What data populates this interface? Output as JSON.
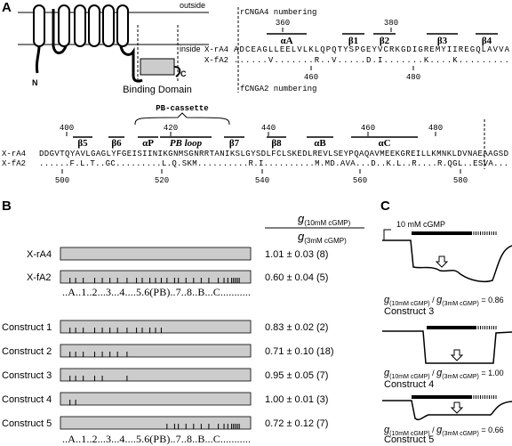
{
  "panel_labels": [
    "A",
    "B",
    "C"
  ],
  "topology": {
    "outside": "outside",
    "inside": "inside",
    "n_term": "N",
    "c_term": "C",
    "domain": "Binding Domain"
  },
  "alignment_top": {
    "numbering_top": "rCNGA4 numbering",
    "numbering_bottom": "fCNGA2 numbering",
    "top_numbers": [
      "360",
      "380"
    ],
    "bottom_numbers": [
      "460",
      "480"
    ],
    "structures": [
      "αA",
      "β1",
      "β2",
      "β3",
      "β4"
    ],
    "rows": [
      {
        "name": "X-rA4",
        "seq": "ADCEAGLLEELVLKLQPQTYSPGEYVCRKGDIGREMYIIREGQLAVVA"
      },
      {
        "name": "X-fA2",
        "seq": "......V.......R..V.....D.I.......K....K........."
      }
    ]
  },
  "alignment_bottom": {
    "cassette": "PB-cassette",
    "top_numbers": [
      "400",
      "420",
      "440",
      "460",
      "480"
    ],
    "structures": [
      "β5",
      "β6",
      "αP",
      "PB loop",
      "β7",
      "β8",
      "αB",
      "αC"
    ],
    "rows": [
      {
        "name": "X-rA4",
        "seq": "DDGVTQYAVLGAGLYFGEISIINIKGNMSGNRRTANIKSLGYSDLFCLSKEDLREVLSEYPQAQAVMEEKGREILLKMNKLDVNAEAAGSD"
      },
      {
        "name": "X-fA2",
        "seq": "......F.L.T..GC.........L.Q.SKM..........R.I..........M.MD.AVA...D..K.L..R....R.QGL..ESVA..."
      }
    ],
    "bottom_numbers": [
      "500",
      "520",
      "540",
      "560",
      "580"
    ]
  },
  "panel_b": {
    "header_g": "g",
    "header_num_sub": "(10mM cGMP)",
    "header_den_sub": "(3mM cGMP)",
    "domain_map": "..A..1..2...3...4....5.6(PB)..7..8..B...C...........",
    "rows": [
      {
        "name": "X-rA4",
        "value": "1.01 ± 0.03 (8)"
      },
      {
        "name": "X-fA2",
        "value": "0.60 ± 0.04 (5)"
      },
      {
        "name": "Construct 1",
        "value": "0.83 ± 0.02 (2)"
      },
      {
        "name": "Construct 2",
        "value": "0.71 ± 0.10 (18)"
      },
      {
        "name": "Construct 3",
        "value": "0.95 ± 0.05 (7)"
      },
      {
        "name": "Construct 4",
        "value": "1.00 ± 0.01 (3)"
      },
      {
        "name": "Construct 5",
        "value": "0.72 ± 0.12 (7)"
      }
    ]
  },
  "panel_c": {
    "stimulus": "10 mM cGMP",
    "g": "g",
    "num_sub": "(10mM cGMP)",
    "sep": " / ",
    "den_sub": "(3mM cGMP)",
    "traces": [
      {
        "ratio": " = 0.86",
        "name": "Construct 3"
      },
      {
        "ratio": " = 1.00",
        "name": "Construct 4"
      },
      {
        "ratio": " = 0.66",
        "name": "Construct 5"
      }
    ]
  }
}
